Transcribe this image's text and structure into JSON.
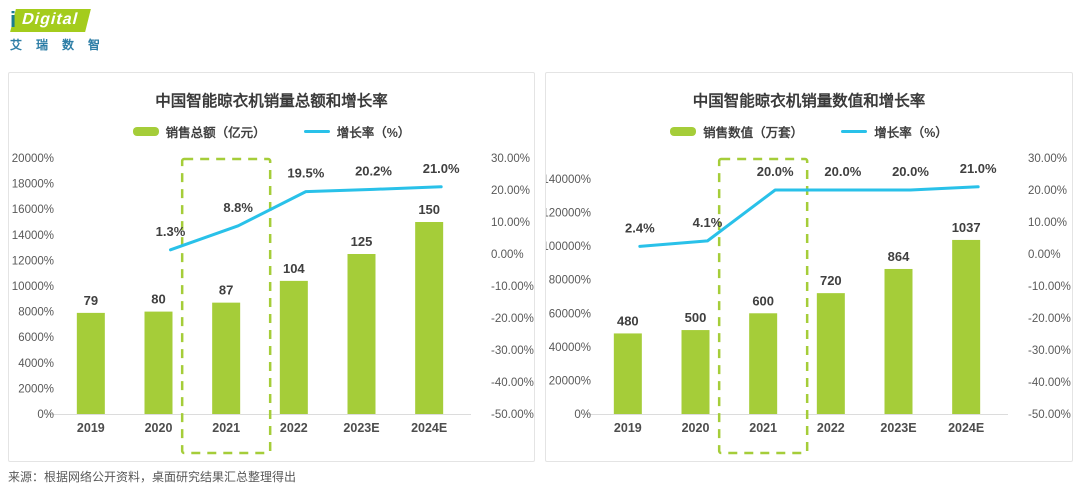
{
  "logo": {
    "i_mark": "i",
    "brand": "Digital",
    "subtitle": "艾瑞数智",
    "green": "#a4cc1c",
    "teal": "#1a7d8e",
    "subtitle_color": "#2e7ea6"
  },
  "source_note": "来源：根据网络公开资料，桌面研究结果汇总整理得出",
  "colors": {
    "bar": "#a5cd39",
    "line": "#29c1e9",
    "highlight_border": "#a5cd39",
    "axis_line": "#dcdcdc",
    "card_border": "#e4e4e4"
  },
  "chart_data": [
    {
      "type": "bar+line",
      "title": "中国智能晾衣机销量总额和增长率",
      "legend": [
        "销售总额（亿元）",
        "增长率（%）"
      ],
      "categories": [
        "2019",
        "2020",
        "2021",
        "2022",
        "2023E",
        "2024E"
      ],
      "bar_series": {
        "name": "销售总额（亿元）",
        "values": [
          79,
          80,
          87,
          104,
          125,
          150
        ],
        "labels": [
          "79",
          "80",
          "87",
          "104",
          "125",
          "150"
        ]
      },
      "line_series": {
        "name": "增长率（%）",
        "values": [
          null,
          1.3,
          8.8,
          19.5,
          20.2,
          21.0
        ],
        "labels": [
          null,
          "1.3%",
          "8.8%",
          "19.5%",
          "20.2%",
          "21.0%"
        ]
      },
      "left_axis": {
        "min": 0,
        "max": 200,
        "ticks": [
          "20000%",
          "18000%",
          "16000%",
          "14000%",
          "12000%",
          "10000%",
          "8000%",
          "6000%",
          "4000%",
          "2000%",
          "0%"
        ]
      },
      "right_axis": {
        "min": -50,
        "max": 30,
        "ticks": [
          "30.00%",
          "20.00%",
          "10.00%",
          "0.00%",
          "-10.00%",
          "-20.00%",
          "-30.00%",
          "-40.00%",
          "-50.00%"
        ]
      },
      "highlight_category": "2021",
      "legend_position": "top",
      "grid": false
    },
    {
      "type": "bar+line",
      "title": "中国智能晾衣机销量数值和增长率",
      "legend": [
        "销售数值（万套）",
        "增长率（%）"
      ],
      "categories": [
        "2019",
        "2020",
        "2021",
        "2022",
        "2023E",
        "2024E"
      ],
      "bar_series": {
        "name": "销售数值（万套）",
        "values": [
          480,
          500,
          600,
          720,
          864,
          1037
        ],
        "labels": [
          "480",
          "500",
          "600",
          "720",
          "864",
          "1037"
        ]
      },
      "line_series": {
        "name": "增长率（%）",
        "values": [
          2.4,
          4.1,
          20.0,
          20.0,
          20.0,
          21.0
        ],
        "labels": [
          "2.4%",
          "4.1%",
          "20.0%",
          "20.0%",
          "20.0%",
          "21.0%"
        ]
      },
      "left_axis": {
        "min": 0,
        "max": 1400,
        "ticks": [
          "140000%",
          "120000%",
          "100000%",
          "80000%",
          "60000%",
          "40000%",
          "20000%",
          "0%"
        ]
      },
      "right_axis": {
        "min": -50,
        "max": 30,
        "ticks": [
          "30.00%",
          "20.00%",
          "10.00%",
          "0.00%",
          "-10.00%",
          "-20.00%",
          "-30.00%",
          "-40.00%",
          "-50.00%"
        ]
      },
      "highlight_category": "2021",
      "legend_position": "top",
      "grid": false
    }
  ]
}
